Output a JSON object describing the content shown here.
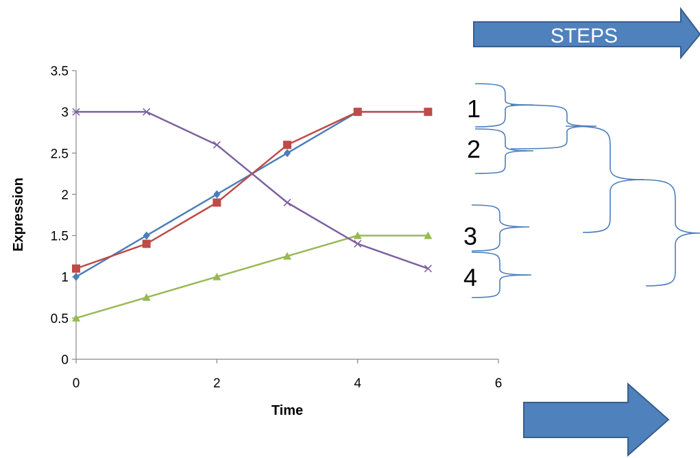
{
  "chart_data": {
    "type": "line",
    "xlabel": "Time",
    "ylabel": "Expression",
    "xlim": [
      0,
      6
    ],
    "ylim": [
      0,
      3.5
    ],
    "xticks": [
      0,
      2,
      4,
      6
    ],
    "yticks": [
      0,
      0.5,
      1,
      1.5,
      2,
      2.5,
      3,
      3.5
    ],
    "grid": false,
    "legend": "none",
    "series": [
      {
        "color": "#4a7ebb",
        "marker": "diamond",
        "x": [
          0,
          1,
          2,
          3,
          4,
          5
        ],
        "y": [
          1.0,
          1.5,
          2.0,
          2.5,
          3.0,
          3.0
        ]
      },
      {
        "color": "#be4b48",
        "marker": "square",
        "x": [
          0,
          1,
          2,
          3,
          4,
          5
        ],
        "y": [
          1.1,
          1.4,
          1.9,
          2.6,
          3.0,
          3.0
        ]
      },
      {
        "color": "#98b954",
        "marker": "triangle",
        "x": [
          0,
          1,
          2,
          3,
          4,
          5
        ],
        "y": [
          0.5,
          0.75,
          1.0,
          1.25,
          1.5,
          1.5
        ]
      },
      {
        "color": "#7d60a0",
        "marker": "x",
        "x": [
          0,
          1,
          2,
          3,
          4,
          5
        ],
        "y": [
          3.0,
          3.0,
          2.6,
          1.9,
          1.4,
          1.1
        ]
      }
    ],
    "annotations": {
      "step_labels": [
        "1",
        "2",
        "3",
        "4"
      ],
      "banner": "STEPS",
      "brace_color": "#4a7dbb",
      "arrow_color": "#4f81bd"
    }
  }
}
